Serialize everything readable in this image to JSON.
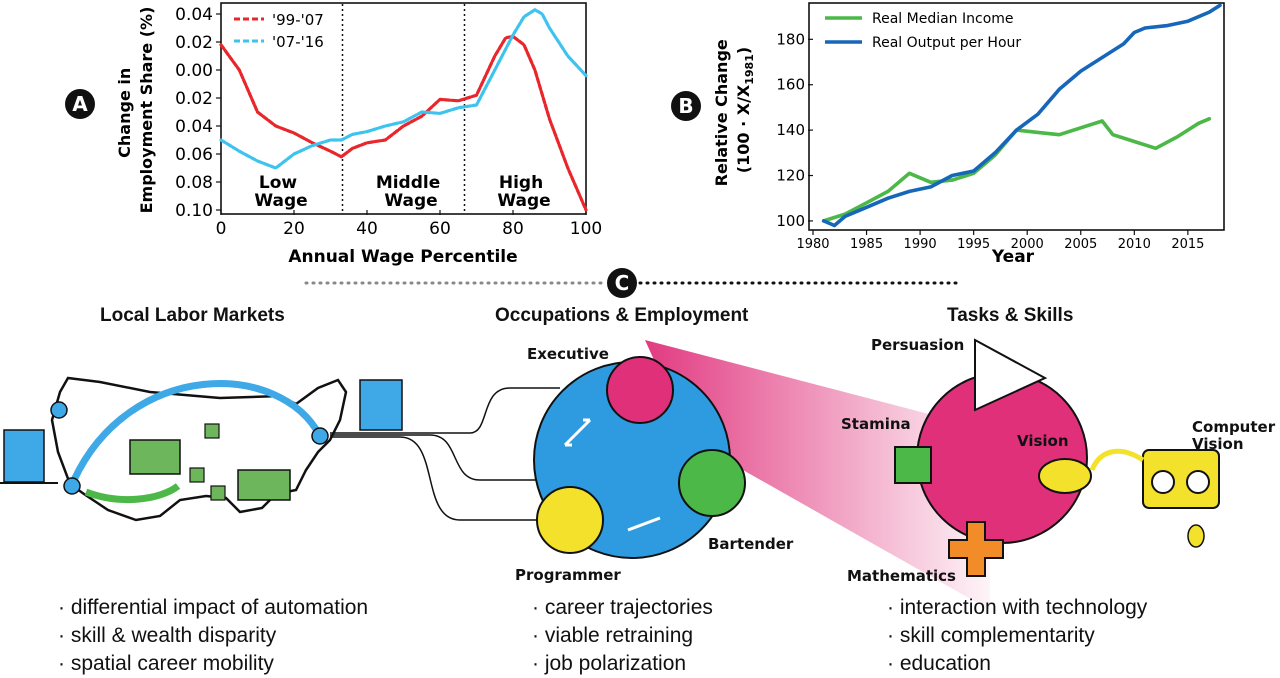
{
  "panel_a": {
    "badge": "A",
    "ylabel_line1": "Change in",
    "ylabel_line2": "Employment Share (%)",
    "xlabel": "Annual Wage Percentile",
    "zones": [
      {
        "line1": "Low",
        "line2": "Wage"
      },
      {
        "line1": "Middle",
        "line2": "Wage"
      },
      {
        "line1": "High",
        "line2": "Wage"
      }
    ]
  },
  "panel_b": {
    "badge": "B",
    "ylabel_line1": "Relative Change",
    "ylabel_line2": "(100 · X/X",
    "ylabel_sub": "1981",
    "ylabel_close": ")",
    "xlabel": "Year"
  },
  "chart_data": [
    {
      "type": "line",
      "xlabel": "Annual Wage Percentile",
      "ylabel": "Change in Employment Share (%)",
      "xlim": [
        0,
        100
      ],
      "ylim": [
        -0.1,
        0.04
      ],
      "xticks": [
        0,
        20,
        40,
        60,
        80,
        100
      ],
      "xtick_labels": [
        "0",
        "20",
        "40",
        "60",
        "80",
        "100"
      ],
      "yticks": [
        0.04,
        0.02,
        0.0,
        -0.02,
        -0.04,
        -0.06,
        -0.08,
        -0.1
      ],
      "ytick_labels": [
        "0.04",
        "0.02",
        "0.00",
        "0.02",
        "0.04",
        "0.06",
        "0.08",
        "0.10"
      ],
      "vlines": [
        33.3,
        66.7
      ],
      "legend_position": "top-left",
      "series": [
        {
          "name": "'99-'07",
          "color": "#e8262b",
          "x": [
            0,
            5,
            10,
            15,
            20,
            25,
            30,
            33,
            36,
            40,
            45,
            50,
            55,
            60,
            65,
            70,
            75,
            78,
            80,
            83,
            86,
            90,
            95,
            100
          ],
          "y": [
            0.018,
            0.0,
            -0.03,
            -0.04,
            -0.045,
            -0.052,
            -0.058,
            -0.062,
            -0.056,
            -0.052,
            -0.05,
            -0.04,
            -0.033,
            -0.021,
            -0.022,
            -0.018,
            0.01,
            0.023,
            0.024,
            0.018,
            0.0,
            -0.035,
            -0.07,
            -0.1
          ]
        },
        {
          "name": "'07-'16",
          "color": "#3ec3ee",
          "x": [
            0,
            5,
            10,
            15,
            20,
            25,
            30,
            33,
            36,
            40,
            45,
            50,
            55,
            60,
            65,
            70,
            75,
            80,
            83,
            86,
            88,
            90,
            95,
            100
          ],
          "y": [
            -0.05,
            -0.058,
            -0.065,
            -0.07,
            -0.06,
            -0.054,
            -0.05,
            -0.05,
            -0.046,
            -0.044,
            -0.04,
            -0.037,
            -0.03,
            -0.031,
            -0.027,
            -0.025,
            0.0,
            0.025,
            0.038,
            0.043,
            0.04,
            0.03,
            0.01,
            -0.004
          ]
        }
      ]
    },
    {
      "type": "line",
      "xlabel": "Year",
      "ylabel": "Relative Change (100 · X/X1981)",
      "xlim": [
        1980,
        2018
      ],
      "ylim": [
        96,
        196
      ],
      "xticks": [
        1980,
        1985,
        1990,
        1995,
        2000,
        2005,
        2010,
        2015
      ],
      "xtick_labels": [
        "1980",
        "1985",
        "1990",
        "1995",
        "2000",
        "2005",
        "2010",
        "2015"
      ],
      "yticks": [
        100,
        120,
        140,
        160,
        180
      ],
      "ytick_labels": [
        "100",
        "120",
        "140",
        "160",
        "180"
      ],
      "legend_position": "top-left",
      "series": [
        {
          "name": "Real Median Income",
          "color": "#4cb848",
          "x": [
            1981,
            1983,
            1985,
            1987,
            1989,
            1991,
            1993,
            1995,
            1997,
            1999,
            2001,
            2003,
            2005,
            2007,
            2008,
            2010,
            2012,
            2014,
            2016,
            2017
          ],
          "y": [
            100,
            103,
            108,
            113,
            121,
            117,
            118,
            121,
            129,
            140,
            139,
            138,
            141,
            144,
            138,
            135,
            132,
            137,
            143,
            145
          ]
        },
        {
          "name": "Real Output per Hour",
          "color": "#1666b9",
          "x": [
            1981,
            1982,
            1983,
            1985,
            1987,
            1989,
            1991,
            1993,
            1995,
            1997,
            1999,
            2001,
            2003,
            2005,
            2007,
            2009,
            2010,
            2011,
            2013,
            2015,
            2017,
            2018
          ],
          "y": [
            100,
            98,
            102,
            106,
            110,
            113,
            115,
            120,
            122,
            130,
            140,
            147,
            158,
            166,
            172,
            178,
            183,
            185,
            186,
            188,
            192,
            195
          ]
        }
      ]
    }
  ],
  "panel_c": {
    "badge": "C",
    "sections": [
      {
        "title": "Local Labor Markets",
        "bullets": [
          "differential impact of automation",
          "skill & wealth disparity",
          "spatial career mobility"
        ]
      },
      {
        "title": "Occupations & Employment",
        "bullets": [
          "career trajectories",
          "viable retraining",
          "job polarization"
        ]
      },
      {
        "title": "Tasks & Skills",
        "bullets": [
          "interaction with technology",
          "skill complementarity",
          "education"
        ]
      }
    ],
    "occupations": {
      "executive": "Executive",
      "bartender": "Bartender",
      "programmer": "Programmer"
    },
    "skills": {
      "persuasion": "Persuasion",
      "stamina": "Stamina",
      "vision": "Vision",
      "mathematics": "Mathematics"
    },
    "computer_vision_line1": "Computer",
    "computer_vision_line2": "Vision"
  }
}
